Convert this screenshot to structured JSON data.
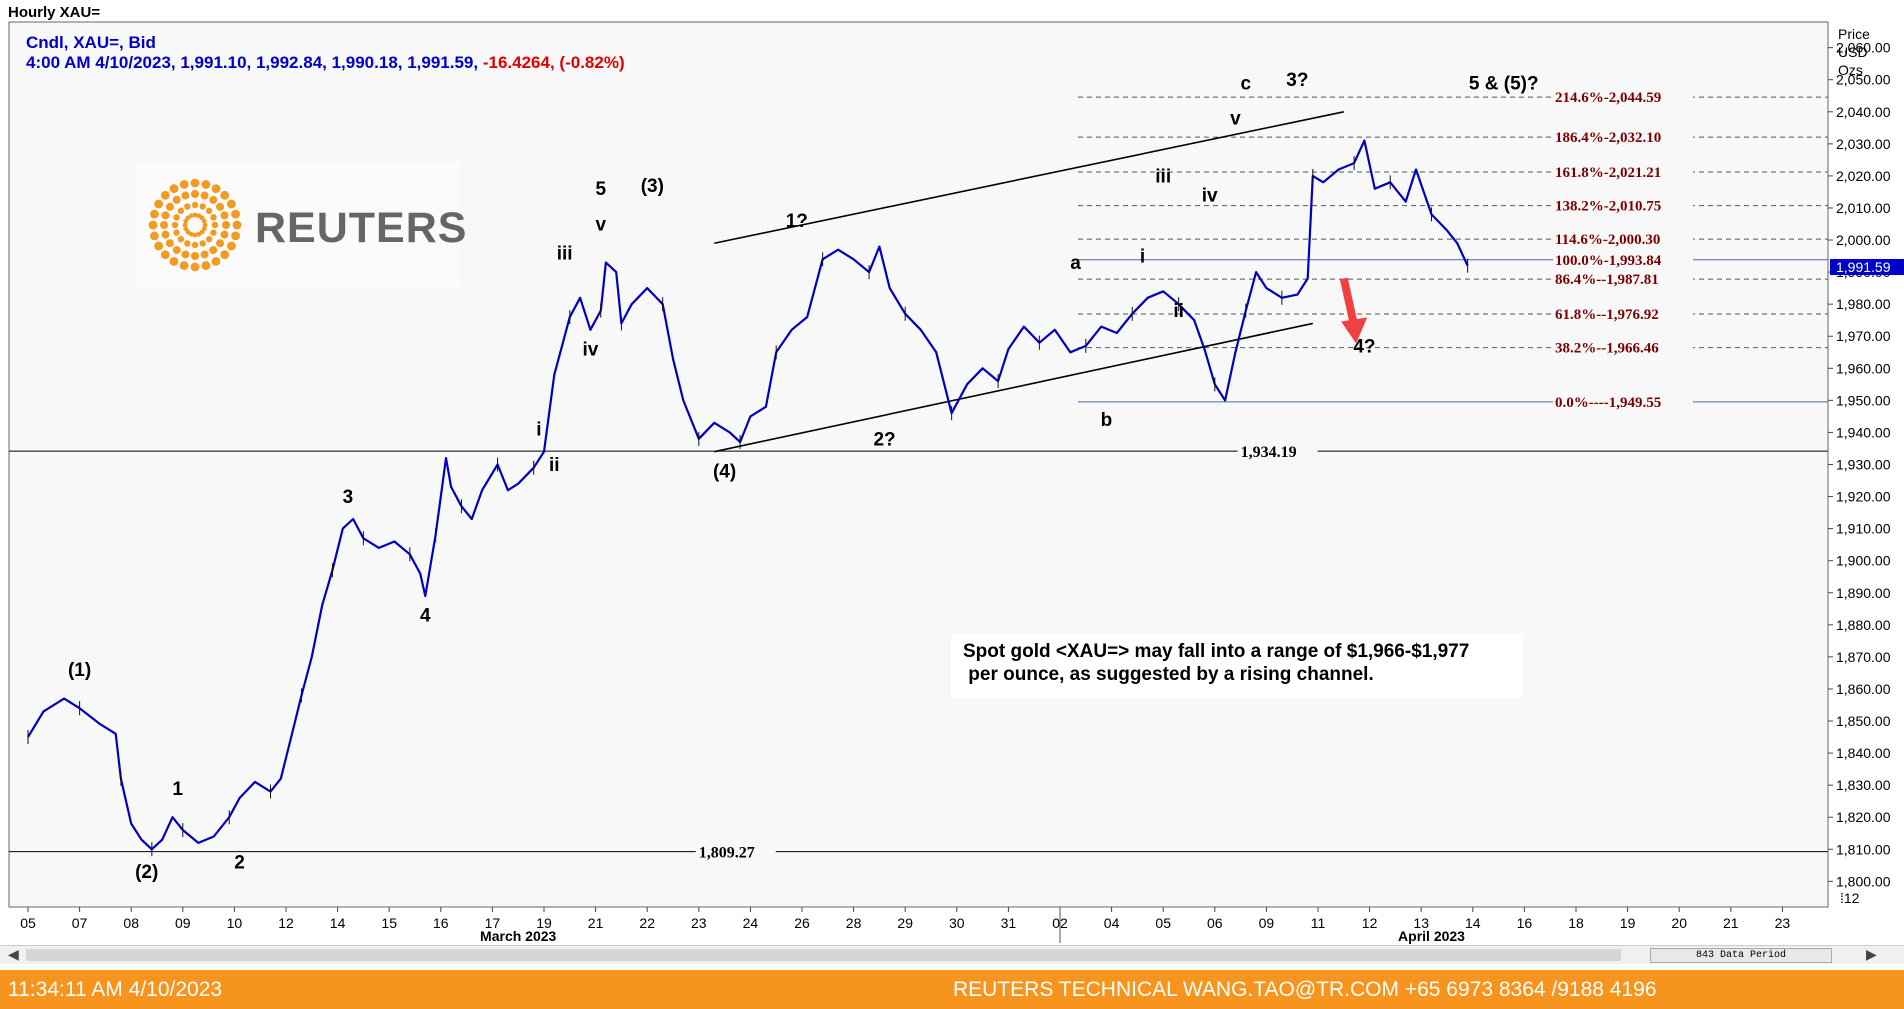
{
  "window": {
    "title": "Hourly XAU="
  },
  "legend": {
    "line1": "Cndl, XAU=, Bid",
    "line2_prefix": "4:00 AM 4/10/2023, 1,991.10, 1,992.84, 1,990.18, 1,991.59,",
    "line2_change": "-16.4264, (-0.82%)"
  },
  "logo": {
    "word": "REUTERS",
    "icon": "reuters-dot-sphere-icon"
  },
  "note": {
    "line1": "Spot gold <XAU=> may fall into a range of $1,966-$1,977",
    "line2": " per ounce, as suggested by a rising channel."
  },
  "scrollbar": {
    "data_period_label": "843 Data Period"
  },
  "status_bar": {
    "time": "11:34:11 AM 4/10/2023",
    "contact": "REUTERS TECHNICAL  WANG.TAO@TR.COM  +65 6973 8364 /9188 4196",
    "background": "#f7941d"
  },
  "chart_data": {
    "type": "candlestick",
    "title": "Hourly XAU=",
    "series_name": "Cndl, XAU=, Bid",
    "y_axis_title": [
      "Price",
      "USD",
      "Ozs"
    ],
    "ylim": [
      1792,
      2068
    ],
    "y_ticks": [
      "2,060.00",
      "2,050.00",
      "2,040.00",
      "2,030.00",
      "2,020.00",
      "2,010.00",
      "2,000.00",
      "1,990.00",
      "1,980.00",
      "1,970.00",
      "1,960.00",
      "1,950.00",
      "1,940.00",
      "1,930.00",
      "1,920.00",
      "1,910.00",
      "1,900.00",
      "1,890.00",
      "1,880.00",
      "1,870.00",
      "1,860.00",
      "1,850.00",
      "1,840.00",
      "1,830.00",
      "1,820.00",
      "1,810.00",
      "1,800.00"
    ],
    "y_ticks_values": [
      2060,
      2050,
      2040,
      2030,
      2020,
      2010,
      2000,
      1990,
      1980,
      1970,
      1960,
      1950,
      1940,
      1930,
      1920,
      1910,
      1900,
      1890,
      1880,
      1870,
      1860,
      1850,
      1840,
      1830,
      1820,
      1810,
      1800
    ],
    "last_price_label": "1,991.59",
    "last_price": 1991.59,
    "scale_factor_label": "⁞12",
    "x_ticks": [
      "05",
      "07",
      "08",
      "09",
      "10",
      "12",
      "14",
      "15",
      "16",
      "17",
      "19",
      "21",
      "22",
      "23",
      "24",
      "26",
      "28",
      "29",
      "30",
      "31",
      "02",
      "04",
      "05",
      "06",
      "09",
      "11",
      "12",
      "13",
      "14",
      "16",
      "18",
      "19",
      "20",
      "21",
      "23"
    ],
    "x_tick_index": [
      0,
      1,
      2,
      3,
      4,
      5,
      6,
      7,
      8,
      9,
      10,
      11,
      12,
      13,
      14,
      15,
      16,
      17,
      18,
      19,
      20,
      21,
      22,
      23,
      24,
      25,
      26,
      27,
      28,
      29,
      30,
      31,
      32,
      33,
      34
    ],
    "month_labels": [
      {
        "label": "March 2023",
        "at_index": 9.5
      },
      {
        "label": "April 2023",
        "at_index": 27.2
      }
    ],
    "month_divider_index": 20,
    "price_path": [
      [
        0,
        1845
      ],
      [
        0.3,
        1853
      ],
      [
        0.7,
        1857
      ],
      [
        1.0,
        1854
      ],
      [
        1.4,
        1849
      ],
      [
        1.7,
        1846
      ],
      [
        1.8,
        1832
      ],
      [
        2.0,
        1818
      ],
      [
        2.2,
        1813
      ],
      [
        2.4,
        1810
      ],
      [
        2.6,
        1813
      ],
      [
        2.8,
        1820
      ],
      [
        3.0,
        1816
      ],
      [
        3.3,
        1812
      ],
      [
        3.6,
        1814
      ],
      [
        3.9,
        1820
      ],
      [
        4.1,
        1826
      ],
      [
        4.4,
        1831
      ],
      [
        4.7,
        1828
      ],
      [
        4.9,
        1832
      ],
      [
        5.1,
        1845
      ],
      [
        5.3,
        1858
      ],
      [
        5.5,
        1870
      ],
      [
        5.7,
        1886
      ],
      [
        5.9,
        1897
      ],
      [
        6.1,
        1910
      ],
      [
        6.3,
        1913
      ],
      [
        6.5,
        1907
      ],
      [
        6.8,
        1904
      ],
      [
        7.1,
        1906
      ],
      [
        7.4,
        1902
      ],
      [
        7.6,
        1896
      ],
      [
        7.7,
        1889
      ],
      [
        7.9,
        1908
      ],
      [
        8.1,
        1932
      ],
      [
        8.2,
        1923
      ],
      [
        8.4,
        1917
      ],
      [
        8.6,
        1913
      ],
      [
        8.8,
        1922
      ],
      [
        9.1,
        1930
      ],
      [
        9.3,
        1922
      ],
      [
        9.5,
        1924
      ],
      [
        9.8,
        1929
      ],
      [
        10.0,
        1934
      ],
      [
        10.2,
        1958
      ],
      [
        10.5,
        1976
      ],
      [
        10.7,
        1982
      ],
      [
        10.9,
        1972
      ],
      [
        11.1,
        1978
      ],
      [
        11.2,
        1993
      ],
      [
        11.4,
        1990
      ],
      [
        11.5,
        1974
      ],
      [
        11.7,
        1980
      ],
      [
        12.0,
        1985
      ],
      [
        12.3,
        1980
      ],
      [
        12.5,
        1963
      ],
      [
        12.7,
        1950
      ],
      [
        13.0,
        1938
      ],
      [
        13.3,
        1943
      ],
      [
        13.6,
        1940
      ],
      [
        13.8,
        1937
      ],
      [
        14.0,
        1945
      ],
      [
        14.3,
        1948
      ],
      [
        14.5,
        1965
      ],
      [
        14.8,
        1972
      ],
      [
        15.1,
        1976
      ],
      [
        15.4,
        1994
      ],
      [
        15.7,
        1997
      ],
      [
        16.0,
        1994
      ],
      [
        16.3,
        1990
      ],
      [
        16.5,
        1998
      ],
      [
        16.7,
        1985
      ],
      [
        17.0,
        1977
      ],
      [
        17.3,
        1972
      ],
      [
        17.6,
        1965
      ],
      [
        17.9,
        1946
      ],
      [
        18.2,
        1955
      ],
      [
        18.5,
        1960
      ],
      [
        18.8,
        1956
      ],
      [
        19.0,
        1966
      ],
      [
        19.3,
        1973
      ],
      [
        19.6,
        1968
      ],
      [
        19.9,
        1972
      ],
      [
        20.2,
        1965
      ],
      [
        20.5,
        1967
      ],
      [
        20.8,
        1973
      ],
      [
        21.1,
        1971
      ],
      [
        21.4,
        1977
      ],
      [
        21.7,
        1982
      ],
      [
        22.0,
        1984
      ],
      [
        22.3,
        1980
      ],
      [
        22.6,
        1975
      ],
      [
        22.8,
        1966
      ],
      [
        23.0,
        1955
      ],
      [
        23.2,
        1950
      ],
      [
        23.4,
        1965
      ],
      [
        23.6,
        1978
      ],
      [
        23.8,
        1990
      ],
      [
        24.0,
        1985
      ],
      [
        24.3,
        1982
      ],
      [
        24.6,
        1983
      ],
      [
        24.8,
        1988
      ],
      [
        24.9,
        2020
      ],
      [
        25.1,
        2018
      ],
      [
        25.4,
        2022
      ],
      [
        25.7,
        2024
      ],
      [
        25.9,
        2031
      ],
      [
        26.1,
        2016
      ],
      [
        26.4,
        2018
      ],
      [
        26.7,
        2012
      ],
      [
        26.9,
        2022
      ],
      [
        27.2,
        2008
      ],
      [
        27.5,
        2003
      ],
      [
        27.7,
        1999
      ],
      [
        27.9,
        1992
      ]
    ],
    "wave_labels": [
      {
        "label": "(1)",
        "i": 1.0,
        "p": 1864
      },
      {
        "label": "(2)",
        "i": 2.3,
        "p": 1801
      },
      {
        "label": "1",
        "i": 2.9,
        "p": 1827
      },
      {
        "label": "2",
        "i": 4.1,
        "p": 1804
      },
      {
        "label": "3",
        "i": 6.2,
        "p": 1918
      },
      {
        "label": "4",
        "i": 7.7,
        "p": 1881
      },
      {
        "label": "i",
        "i": 9.9,
        "p": 1939
      },
      {
        "label": "ii",
        "i": 10.2,
        "p": 1928
      },
      {
        "label": "iii",
        "i": 10.4,
        "p": 1994
      },
      {
        "label": "iv",
        "i": 10.9,
        "p": 1964
      },
      {
        "label": "v",
        "i": 11.1,
        "p": 2003
      },
      {
        "label": "5",
        "i": 11.1,
        "p": 2014
      },
      {
        "label": "(3)",
        "i": 12.1,
        "p": 2015
      },
      {
        "label": "(4)",
        "i": 13.5,
        "p": 1926
      },
      {
        "label": "1?",
        "i": 14.9,
        "p": 2004
      },
      {
        "label": "2?",
        "i": 16.6,
        "p": 1936
      },
      {
        "label": "a",
        "i": 20.3,
        "p": 1991
      },
      {
        "label": "b",
        "i": 20.9,
        "p": 1942
      },
      {
        "label": "i",
        "i": 21.6,
        "p": 1993
      },
      {
        "label": "ii",
        "i": 22.3,
        "p": 1976
      },
      {
        "label": "iii",
        "i": 22.0,
        "p": 2018
      },
      {
        "label": "iv",
        "i": 22.9,
        "p": 2012
      },
      {
        "label": "v",
        "i": 23.4,
        "p": 2036
      },
      {
        "label": "c",
        "i": 23.6,
        "p": 2047
      },
      {
        "label": "3?",
        "i": 24.6,
        "p": 2048
      },
      {
        "label": "5 & (5)?",
        "i": 28.6,
        "p": 2047
      },
      {
        "label": "4?",
        "i": 25.9,
        "p": 1965
      }
    ],
    "support_levels": [
      {
        "label": "1,934.19",
        "value": 1934.19,
        "label_at_index": 23.5
      },
      {
        "label": "1,809.27",
        "value": 1809.27,
        "label_at_index": 13.0
      }
    ],
    "fibonacci_levels": [
      {
        "label": "214.6%-2,044.59",
        "value": 2044.59
      },
      {
        "label": "186.4%-2,032.10",
        "value": 2032.1
      },
      {
        "label": "161.8%-2,021.21",
        "value": 2021.21
      },
      {
        "label": "138.2%-2,010.75",
        "value": 2010.75
      },
      {
        "label": "114.6%-2,000.30",
        "value": 2000.3
      },
      {
        "label": "100.0%-1,993.84",
        "value": 1993.84
      },
      {
        "label": "86.4%--1,987.81",
        "value": 1987.81
      },
      {
        "label": "61.8%--1,976.92",
        "value": 1976.92
      },
      {
        "label": "38.2%--1,966.46",
        "value": 1966.46
      },
      {
        "label": "0.0%----1,949.55",
        "value": 1949.55
      }
    ],
    "channel_lines": [
      {
        "from": [
          13.3,
          1934
        ],
        "to": [
          24.9,
          1974
        ]
      },
      {
        "from": [
          13.3,
          1999
        ],
        "to": [
          25.5,
          2040
        ]
      }
    ],
    "forecast_arrow": {
      "from": [
        25.5,
        1988
      ],
      "to": [
        25.7,
        1969
      ],
      "color": "#f04040"
    },
    "colors": {
      "candles": "#0000c0",
      "fib_text": "#7a0000",
      "legend": "#0000c8",
      "change": "#e00000",
      "last_price_bg": "#0000c8"
    }
  }
}
